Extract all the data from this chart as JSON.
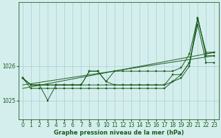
{
  "title": "Graphe pression niveau de la mer (hPa)",
  "bg_color": "#d4eeee",
  "grid_color": "#a8cccc",
  "line_color": "#1a5c1a",
  "xlim": [
    -0.5,
    23.5
  ],
  "ylim": [
    1024.45,
    1027.85
  ],
  "yticks": [
    1025,
    1026
  ],
  "xticks": [
    0,
    1,
    2,
    3,
    4,
    5,
    6,
    7,
    8,
    9,
    10,
    11,
    12,
    13,
    14,
    15,
    16,
    17,
    18,
    19,
    20,
    21,
    22,
    23
  ],
  "series": [
    [
      1025.65,
      1025.45,
      1025.45,
      1025.45,
      1025.45,
      1025.45,
      1025.45,
      1025.45,
      1025.45,
      1025.45,
      1025.45,
      1025.45,
      1025.45,
      1025.45,
      1025.45,
      1025.45,
      1025.45,
      1025.45,
      1025.55,
      1025.65,
      1026.0,
      1027.4,
      1026.3,
      1026.3
    ],
    [
      1025.65,
      1025.45,
      1025.45,
      1025.0,
      1025.45,
      1025.45,
      1025.45,
      1025.45,
      1025.85,
      1025.85,
      1025.55,
      1025.85,
      1025.85,
      1025.85,
      1025.85,
      1025.85,
      1025.85,
      1025.85,
      1025.85,
      1025.95,
      1026.35,
      1027.4,
      1026.35,
      1026.4
    ],
    [
      1025.65,
      1025.45,
      1025.45,
      1025.45,
      1025.45,
      1025.45,
      1025.45,
      1025.45,
      1025.85,
      1025.85,
      1025.55,
      1025.45,
      1025.45,
      1025.45,
      1025.45,
      1025.45,
      1025.45,
      1025.45,
      1025.75,
      1025.75,
      1026.1,
      1027.2,
      1026.1,
      1026.1
    ],
    [
      1025.65,
      1025.35,
      1025.35,
      1025.35,
      1025.35,
      1025.35,
      1025.35,
      1025.35,
      1025.35,
      1025.35,
      1025.35,
      1025.35,
      1025.35,
      1025.35,
      1025.35,
      1025.35,
      1025.35,
      1025.35,
      1025.55,
      1025.75,
      1026.1,
      1027.35,
      1026.4,
      1026.4
    ]
  ],
  "trend_series": [
    {
      "x": [
        0,
        23
      ],
      "y": [
        1025.45,
        1026.3
      ]
    },
    {
      "x": [
        0,
        23
      ],
      "y": [
        1025.35,
        1026.4
      ]
    }
  ]
}
